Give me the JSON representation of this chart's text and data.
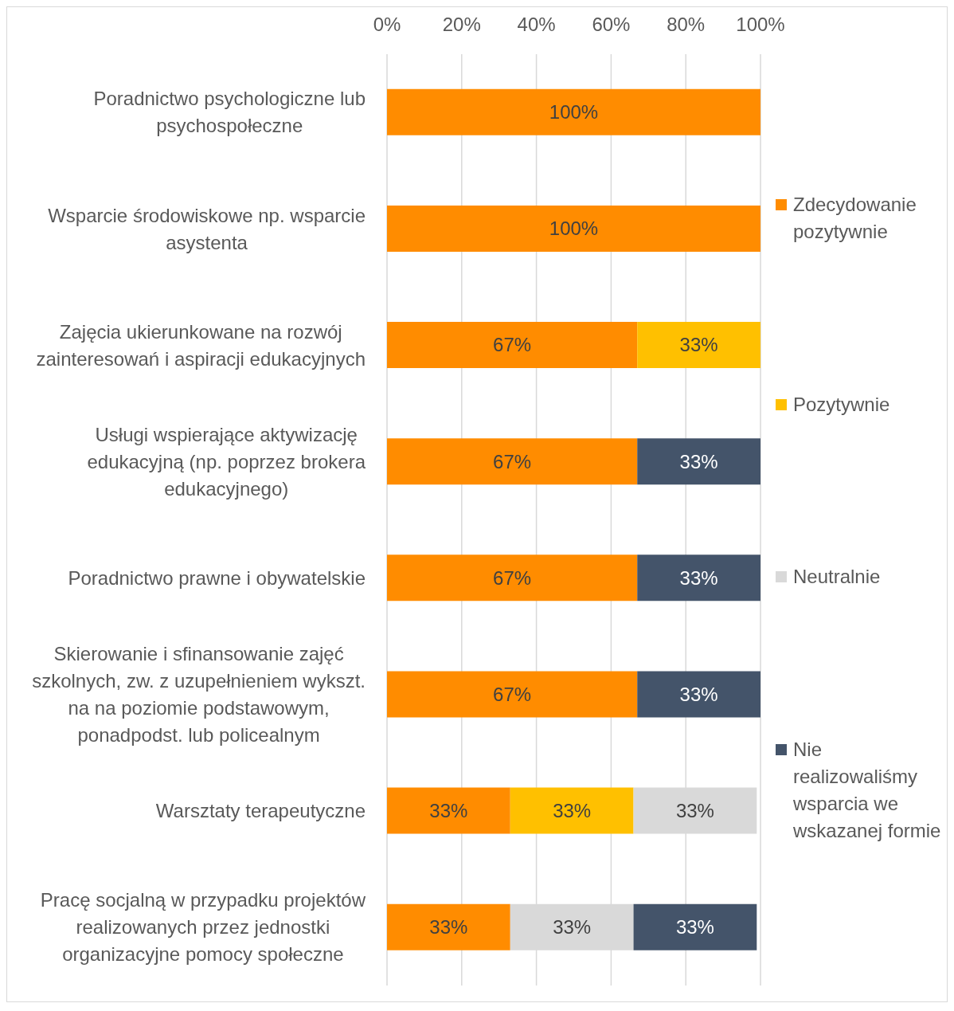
{
  "chart_data": {
    "type": "bar",
    "orientation": "horizontal",
    "stacked": true,
    "categories": [
      "Poradnictwo psychologiczne lub psychospołeczne",
      "Wsparcie środowiskowe np. wsparcie asystenta",
      "Zajęcia ukierunkowane na rozwój zainteresowań i aspiracji edukacyjnych",
      "Usługi wspierające aktywizację edukacyjną (np. poprzez brokera edukacyjnego)",
      "Poradnictwo prawne i obywatelskie",
      "Skierowanie i sfinansowanie zajęć szkolnych, zw. z uzupełnieniem wykszt. na na poziomie podstawowym, ponadpodst. lub policealnym",
      "Warsztaty terapeutyczne",
      "Pracę socjalną w przypadku projektów realizowanych przez jednostki organizacyjne pomocy społeczne"
    ],
    "series": [
      {
        "name": "Zdecydowanie pozytywnie",
        "color": "#ff8c00",
        "values": [
          100,
          100,
          67,
          67,
          67,
          67,
          33,
          33
        ],
        "value_labels": [
          "100%",
          "100%",
          "67%",
          "67%",
          "67%",
          "67%",
          "33%",
          "33%"
        ]
      },
      {
        "name": "Pozytywnie",
        "color": "#ffc000",
        "values": [
          null,
          null,
          33,
          null,
          null,
          null,
          33,
          null
        ],
        "value_labels": [
          null,
          null,
          "33%",
          null,
          null,
          null,
          "33%",
          null
        ]
      },
      {
        "name": "Neutralnie",
        "color": "#d9d9d9",
        "values": [
          null,
          null,
          null,
          null,
          null,
          null,
          33,
          33
        ],
        "value_labels": [
          null,
          null,
          null,
          null,
          null,
          null,
          "33%",
          "33%"
        ]
      },
      {
        "name": "Nie realizowaliśmy wsparcia we wskazanej formie",
        "color": "#44546a",
        "values": [
          null,
          null,
          null,
          33,
          33,
          33,
          null,
          33
        ],
        "value_labels": [
          null,
          null,
          null,
          "33%",
          "33%",
          "33%",
          null,
          "33%"
        ]
      }
    ],
    "xlim": [
      0,
      100
    ],
    "xticks": [
      {
        "value": 0,
        "label": "0%"
      },
      {
        "value": 20,
        "label": "20%"
      },
      {
        "value": 40,
        "label": "40%"
      },
      {
        "value": 60,
        "label": "60%"
      },
      {
        "value": 80,
        "label": "80%"
      },
      {
        "value": 100,
        "label": "100%"
      }
    ],
    "grid": "x",
    "legend": "right"
  }
}
